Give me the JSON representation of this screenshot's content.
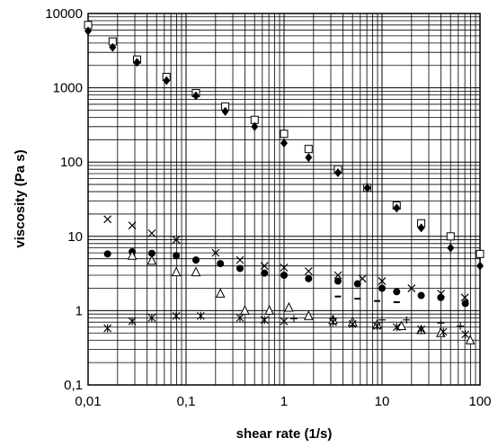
{
  "chart_data": {
    "type": "scatter",
    "title": "",
    "xlabel": "shear rate (1/s)",
    "ylabel": "viscosity (Pa s)",
    "xscale": "log",
    "yscale": "log",
    "xlim": [
      0.01,
      100
    ],
    "ylim": [
      0.1,
      10000
    ],
    "x_ticks": [
      "0,01",
      "0,1",
      "1",
      "10",
      "100"
    ],
    "y_ticks": [
      "0,1",
      "1",
      "10",
      "100",
      "1000",
      "10000"
    ],
    "grid": "major and minor",
    "legend": "none",
    "series": [
      {
        "marker": "open-square",
        "x": [
          0.01,
          0.0178,
          0.0316,
          0.0631,
          0.126,
          0.251,
          0.501,
          1.0,
          1.78,
          3.55,
          7.08,
          14.1,
          25.1,
          50.1,
          100
        ],
        "y": [
          7000,
          4200,
          2400,
          1400,
          850,
          560,
          370,
          240,
          150,
          80,
          45,
          26,
          15,
          10,
          5.8
        ]
      },
      {
        "marker": "filled-diamond",
        "x": [
          0.01,
          0.0178,
          0.0316,
          0.0631,
          0.126,
          0.251,
          0.501,
          1.0,
          1.78,
          3.55,
          7.08,
          14.1,
          25.1,
          50.1,
          100
        ],
        "y": [
          5800,
          3500,
          2200,
          1250,
          780,
          480,
          300,
          180,
          115,
          72,
          45,
          24,
          13,
          7,
          4
        ]
      },
      {
        "marker": "x-cross",
        "x": [
          0.0158,
          0.0282,
          0.0447,
          0.0794,
          0.2,
          0.355,
          0.631,
          1.0,
          1.78,
          3.55,
          6.31,
          10,
          20,
          40,
          70
        ],
        "y": [
          17,
          14,
          11,
          9,
          6,
          4.8,
          4,
          3.8,
          3.4,
          3,
          2.7,
          2.5,
          2,
          1.7,
          1.5
        ]
      },
      {
        "marker": "filled-circle",
        "x": [
          0.0158,
          0.0282,
          0.0447,
          0.0794,
          0.126,
          0.224,
          0.355,
          0.631,
          1.0,
          1.78,
          3.55,
          5.62,
          10,
          14.1,
          25.1,
          39.8,
          70.8
        ],
        "y": [
          5.8,
          6.2,
          5.9,
          5.5,
          4.8,
          4.3,
          3.7,
          3.2,
          3.0,
          2.7,
          2.5,
          2.3,
          2.0,
          1.8,
          1.6,
          1.5,
          1.25
        ]
      },
      {
        "marker": "open-triangle",
        "x": [
          0.0282,
          0.0447,
          0.0794,
          0.126,
          0.224,
          0.398,
          0.708,
          1.12,
          1.78,
          3.16,
          5.01,
          8.91,
          15.8,
          25.1,
          39.8,
          79.4
        ],
        "y": [
          5.5,
          4.7,
          3.3,
          3.3,
          1.7,
          1.0,
          1.0,
          1.1,
          0.85,
          0.75,
          0.7,
          0.65,
          0.62,
          0.55,
          0.5,
          0.4
        ]
      },
      {
        "marker": "dash",
        "x": [
          3.55,
          5.62,
          8.91,
          14.1
        ],
        "y": [
          1.55,
          1.45,
          1.35,
          1.3
        ]
      },
      {
        "marker": "asterisk",
        "x": [
          0.0158,
          0.0282,
          0.0447,
          0.0794,
          0.141,
          0.355,
          0.631,
          1.0,
          3.16,
          5.01,
          8.91,
          14.1,
          25.1,
          42.2,
          70.8
        ],
        "y": [
          0.58,
          0.72,
          0.8,
          0.85,
          0.85,
          0.8,
          0.75,
          0.72,
          0.7,
          0.66,
          0.62,
          0.6,
          0.56,
          0.52,
          0.48
        ]
      },
      {
        "marker": "plus",
        "x": [
          1.26,
          3.16,
          10,
          17.8,
          39.8,
          63.1
        ],
        "y": [
          0.78,
          0.78,
          0.75,
          0.75,
          0.68,
          0.62
        ]
      }
    ]
  }
}
